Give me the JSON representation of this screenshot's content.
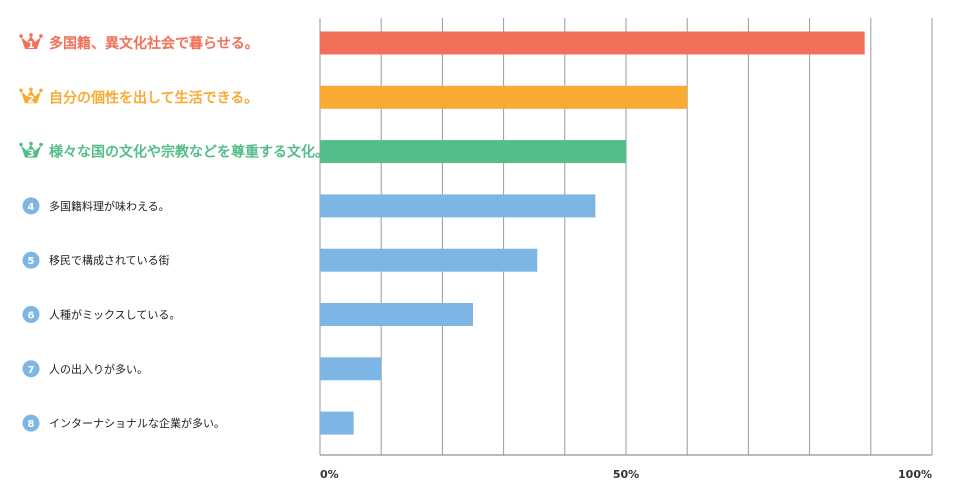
{
  "chart_data": {
    "type": "bar",
    "orientation": "horizontal",
    "categories": [
      "多国籍、異文化社会で暮らせる。",
      "自分の個性を出して生活できる。",
      "様々な国の文化や宗教などを尊重する文化。",
      "多国籍料理が味わえる。",
      "移民で構成されている街",
      "人種がミックスしている。",
      "人の出入りが多い。",
      "インターナショナルな企業が多い。"
    ],
    "ranks": [
      "1",
      "2",
      "3",
      "4",
      "5",
      "6",
      "7",
      "8"
    ],
    "values": [
      89,
      60,
      50,
      45,
      35.5,
      25,
      10,
      5.5
    ],
    "colors": [
      "#f07059",
      "#f9aa33",
      "#55be88",
      "#7db6e4",
      "#7db6e4",
      "#7db6e4",
      "#7db6e4",
      "#7db6e4"
    ],
    "xlim": [
      0,
      100
    ],
    "xticks": [
      "0%",
      "50%",
      "100%"
    ],
    "grid": true,
    "gridline_count": 10
  }
}
